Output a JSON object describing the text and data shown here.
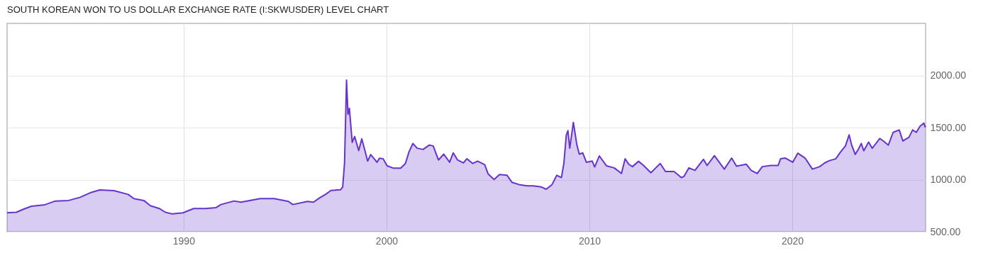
{
  "chart_data": {
    "type": "area",
    "title": "SOUTH KOREAN WON TO US DOLLAR EXCHANGE RATE (I:SKWUSDER) LEVEL CHART",
    "x": [
      1981.3,
      1981.76,
      1982.1,
      1982.5,
      1983.16,
      1983.68,
      1984.33,
      1984.9,
      1985.45,
      1985.87,
      1986.57,
      1987.27,
      1987.55,
      1988.04,
      1988.36,
      1988.8,
      1989.1,
      1989.44,
      1989.97,
      1990.5,
      1991.08,
      1991.6,
      1991.84,
      1992.48,
      1992.83,
      1993.77,
      1994.47,
      1995.17,
      1995.38,
      1996.1,
      1996.4,
      1996.68,
      1997.03,
      1997.26,
      1997.73,
      1997.84,
      1997.93,
      1998.03,
      1998.1,
      1998.17,
      1998.31,
      1998.43,
      1998.63,
      1998.78,
      1998.89,
      1999.07,
      1999.22,
      1999.53,
      1999.65,
      1999.83,
      2000.03,
      2000.35,
      2000.7,
      2000.93,
      2001.11,
      2001.3,
      2001.51,
      2001.8,
      2002.1,
      2002.3,
      2002.56,
      2002.82,
      2003.11,
      2003.29,
      2003.5,
      2003.79,
      2003.96,
      2004.25,
      2004.49,
      2004.84,
      2005.01,
      2005.3,
      2005.57,
      2005.94,
      2006.18,
      2006.53,
      2006.93,
      2007.23,
      2007.63,
      2007.87,
      2008.16,
      2008.39,
      2008.62,
      2008.74,
      2008.86,
      2008.94,
      2009.03,
      2009.21,
      2009.38,
      2009.5,
      2009.67,
      2009.85,
      2010.14,
      2010.26,
      2010.49,
      2010.84,
      2011.22,
      2011.58,
      2011.76,
      2011.94,
      2012.12,
      2012.42,
      2012.67,
      2013.03,
      2013.27,
      2013.49,
      2013.75,
      2014.17,
      2014.54,
      2014.66,
      2014.9,
      2015.2,
      2015.62,
      2015.8,
      2016.16,
      2016.65,
      2017.01,
      2017.25,
      2017.73,
      2017.97,
      2018.27,
      2018.52,
      2018.94,
      2019.3,
      2019.42,
      2019.66,
      2020.02,
      2020.27,
      2020.63,
      2020.99,
      2021.35,
      2021.59,
      2021.83,
      2022.14,
      2022.38,
      2022.62,
      2022.8,
      2022.92,
      2023.1,
      2023.28,
      2023.4,
      2023.52,
      2023.76,
      2023.94,
      2024.31,
      2024.49,
      2024.73,
      2024.97,
      2025.27,
      2025.45,
      2025.75,
      2025.93,
      2026.11,
      2026.29,
      2026.48,
      2026.56
    ],
    "series": [
      {
        "color": "#6633cc",
        "values": [
          682,
          687,
          716,
          745,
          759,
          795,
          800,
          831,
          878,
          901,
          894,
          858,
          818,
          800,
          750,
          723,
          687,
          671,
          682,
          723,
          723,
          732,
          761,
          795,
          784,
          818,
          818,
          791,
          761,
          791,
          784,
          822,
          863,
          896,
          903,
          930,
          1155,
          1955,
          1628,
          1685,
          1358,
          1414,
          1279,
          1392,
          1313,
          1178,
          1241,
          1167,
          1205,
          1201,
          1133,
          1110,
          1110,
          1155,
          1268,
          1347,
          1302,
          1290,
          1331,
          1324,
          1189,
          1245,
          1167,
          1257,
          1189,
          1160,
          1201,
          1155,
          1178,
          1144,
          1054,
          1002,
          1049,
          1042,
          975,
          953,
          941,
          941,
          930,
          908,
          953,
          1042,
          1020,
          1155,
          1426,
          1471,
          1302,
          1550,
          1336,
          1245,
          1257,
          1167,
          1178,
          1122,
          1228,
          1133,
          1113,
          1059,
          1200,
          1148,
          1125,
          1176,
          1136,
          1066,
          1113,
          1155,
          1078,
          1078,
          1019,
          1031,
          1113,
          1089,
          1195,
          1136,
          1230,
          1101,
          1207,
          1129,
          1148,
          1089,
          1059,
          1125,
          1136,
          1136,
          1200,
          1207,
          1167,
          1254,
          1207,
          1101,
          1125,
          1160,
          1183,
          1200,
          1266,
          1324,
          1430,
          1336,
          1242,
          1301,
          1348,
          1277,
          1360,
          1301,
          1395,
          1371,
          1331,
          1454,
          1477,
          1371,
          1407,
          1477,
          1454,
          1512,
          1543,
          1501
        ]
      }
    ],
    "xlim": [
      1981.3,
      2026.57
    ],
    "ylim": [
      500,
      2500
    ],
    "xticks": [
      1990,
      2000,
      2010,
      2020
    ],
    "yticks": [
      {
        "value": 500,
        "label": "500.00"
      },
      {
        "value": 1000,
        "label": "1000.00"
      },
      {
        "value": 1500,
        "label": "1500.00"
      },
      {
        "value": 2000,
        "label": "2000.00"
      }
    ],
    "grid": true
  }
}
